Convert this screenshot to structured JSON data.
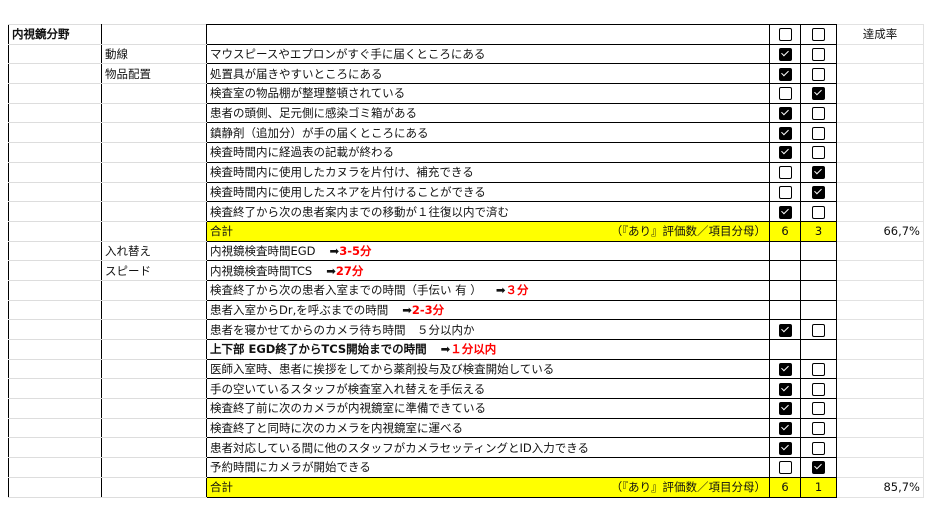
{
  "section_title": "内視鏡分野",
  "rate_header": "達成率",
  "total_label": "合計",
  "total_note": "（『あり』評価数／項目分母）",
  "arrow": "➡",
  "rows": [
    {
      "type": "header",
      "a": "内視鏡分野",
      "b": "",
      "text": "",
      "c1": false,
      "c2": false,
      "rate": "達成率"
    },
    {
      "type": "item",
      "b": "動線",
      "text": "マウスピースやエプロンがすぐ手に届くところにある",
      "c1": true,
      "c2": false
    },
    {
      "type": "item",
      "b": "物品配置",
      "text": "処置具が届きやすいところにある",
      "c1": true,
      "c2": false
    },
    {
      "type": "item",
      "b": "",
      "text": "検査室の物品棚が整理整頓されている",
      "c1": false,
      "c2": true
    },
    {
      "type": "item",
      "b": "",
      "text": "患者の頭側、足元側に感染ゴミ箱がある",
      "c1": true,
      "c2": false
    },
    {
      "type": "item",
      "b": "",
      "text": "鎮静剤（追加分）が手の届くところにある",
      "c1": true,
      "c2": false
    },
    {
      "type": "item",
      "b": "",
      "text": "検査時間内に経過表の記載が終わる",
      "c1": true,
      "c2": false
    },
    {
      "type": "item",
      "b": "",
      "text": "検査時間内に使用したカヌラを片付け、補充できる",
      "c1": false,
      "c2": true
    },
    {
      "type": "item",
      "b": "",
      "text": "検査時間内に使用したスネアを片付けることができる",
      "c1": false,
      "c2": true
    },
    {
      "type": "item",
      "b": "",
      "text": "検査終了から次の患者案内までの移動が１往復以内で済む",
      "c1": true,
      "c2": false
    },
    {
      "type": "total",
      "yes": "6",
      "no": "3",
      "rate": "66,7%"
    },
    {
      "type": "info",
      "b": "入れ替え",
      "text": "内視鏡検査時間EGD",
      "target": "3-5分"
    },
    {
      "type": "info",
      "b": "スピード",
      "text": "内視鏡検査時間TCS",
      "target": "27分"
    },
    {
      "type": "info",
      "b": "",
      "text": "検査終了から次の患者入室までの時間（手伝い 有 ）",
      "target": "３分"
    },
    {
      "type": "info",
      "b": "",
      "text": "患者入室からDr,を呼ぶまでの時間",
      "target": "2-3分"
    },
    {
      "type": "item",
      "b": "",
      "text": "患者を寝かせてからのカメラ待ち時間　５分以内か",
      "c1": true,
      "c2": false
    },
    {
      "type": "info",
      "b": "",
      "text": "上下部 EGD終了からTCS開始までの時間",
      "target": "１分以内",
      "bold": true
    },
    {
      "type": "item",
      "b": "",
      "text": "医師入室時、患者に挨拶をしてから薬剤投与及び検査開始している",
      "c1": true,
      "c2": false
    },
    {
      "type": "item",
      "b": "",
      "text": "手の空いているスタッフが検査室入れ替えを手伝える",
      "c1": true,
      "c2": false
    },
    {
      "type": "item",
      "b": "",
      "text": "検査終了前に次のカメラが内視鏡室に準備できている",
      "c1": true,
      "c2": false
    },
    {
      "type": "item",
      "b": "",
      "text": "検査終了と同時に次のカメラを内視鏡室に運べる",
      "c1": true,
      "c2": false
    },
    {
      "type": "item",
      "b": "",
      "text": "患者対応している間に他のスタッフがカメラセッティングとID入力できる",
      "c1": true,
      "c2": false
    },
    {
      "type": "item",
      "b": "",
      "text": "予約時間にカメラが開始できる",
      "c1": false,
      "c2": true
    },
    {
      "type": "total",
      "yes": "6",
      "no": "1",
      "rate": "85,7%"
    }
  ]
}
